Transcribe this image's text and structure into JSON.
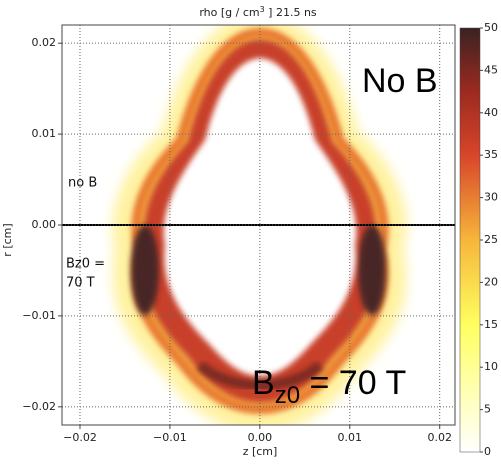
{
  "chart_data": {
    "type": "heatmap",
    "title_parts": [
      "rho [g / cm",
      "3",
      " ]   21.5 ns"
    ],
    "xlabel": "z [cm]",
    "ylabel": "r [cm]",
    "xlim": [
      -0.022,
      0.0217
    ],
    "ylim": [
      -0.022,
      0.022
    ],
    "xticks": [
      {
        "value": -0.02,
        "label": "−0.02"
      },
      {
        "value": -0.01,
        "label": "−0.01"
      },
      {
        "value": 0,
        "label": "0.00"
      },
      0.01,
      0.02
    ],
    "yticks": [
      {
        "value": -0.02,
        "label": "−0.02"
      },
      {
        "value": -0.01,
        "label": "−0.01"
      },
      {
        "value": 0,
        "label": "0.00"
      },
      0.01,
      0.02
    ],
    "clim": [
      0,
      50
    ],
    "cticks": [
      0,
      5,
      10,
      15,
      20,
      25,
      30,
      35,
      40,
      45,
      50
    ],
    "grid": true,
    "annotations": [
      {
        "text": "No B"
      },
      {
        "text": "no B"
      },
      {
        "lines": [
          "Bz0 =",
          "70 T"
        ]
      },
      {
        "parts": [
          "B",
          "z0",
          " = 70 T"
        ]
      }
    ]
  }
}
